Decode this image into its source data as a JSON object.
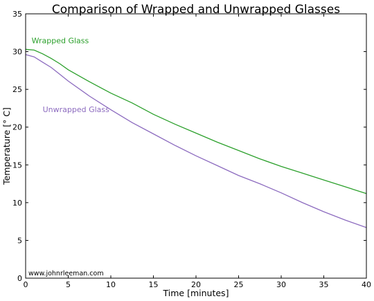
{
  "chart_data": {
    "type": "line",
    "title": "Comparison of Wrapped and Unwrapped Glasses",
    "xlabel": "Time [minutes]",
    "ylabel": "Temperature [° C]",
    "xlim": [
      0,
      40
    ],
    "ylim": [
      0,
      35
    ],
    "xticks": [
      "0",
      "5",
      "10",
      "15",
      "20",
      "25",
      "30",
      "35",
      "40"
    ],
    "yticks": [
      "0",
      "5",
      "10",
      "15",
      "20",
      "25",
      "30",
      "35"
    ],
    "grid": false,
    "legend": "inline labels",
    "series": [
      {
        "name": "Wrapped Glass",
        "color": "#2ca02c",
        "x": [
          0,
          1,
          2,
          3,
          4,
          5,
          7.5,
          10,
          12.5,
          15,
          17.5,
          20,
          22.5,
          25,
          27.5,
          30,
          32.5,
          35,
          37.5,
          40
        ],
        "y": [
          30.3,
          30.2,
          29.7,
          29.1,
          28.4,
          27.6,
          26.0,
          24.5,
          23.2,
          21.7,
          20.4,
          19.2,
          18.0,
          16.9,
          15.8,
          14.8,
          13.9,
          13.0,
          12.1,
          11.2
        ]
      },
      {
        "name": "Unwrapped Glass",
        "color": "#8c6bbf",
        "x": [
          0,
          1,
          2,
          3,
          4,
          5,
          7.5,
          10,
          12.5,
          15,
          17.5,
          20,
          22.5,
          25,
          27.5,
          30,
          32.5,
          35,
          37.5,
          40
        ],
        "y": [
          29.6,
          29.3,
          28.6,
          27.9,
          27.0,
          26.1,
          24.1,
          22.3,
          20.6,
          19.1,
          17.6,
          16.2,
          14.9,
          13.6,
          12.5,
          11.3,
          10.0,
          8.8,
          7.7,
          6.7
        ]
      }
    ],
    "annotations": [
      {
        "text": "Wrapped Glass",
        "x": 0.7,
        "y": 31.1,
        "color": "#2ca02c"
      },
      {
        "text": "Unwrapped Glass",
        "x": 2.0,
        "y": 22.0,
        "color": "#8c6bbf"
      }
    ],
    "watermark": "www.johnrleeman.com"
  }
}
